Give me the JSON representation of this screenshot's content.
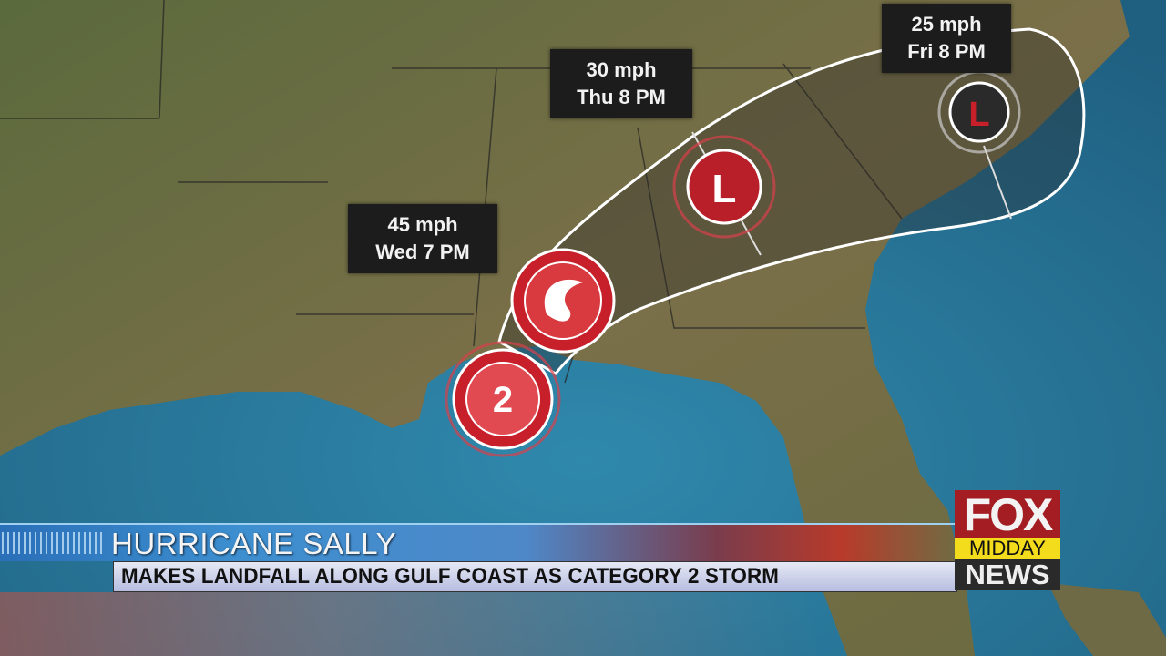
{
  "map": {
    "forecast_points": [
      {
        "wind": "45 mph",
        "time": "Wed 7 PM"
      },
      {
        "wind": "30 mph",
        "time": "Thu 8 PM"
      },
      {
        "wind": "25 mph",
        "time": "Fri 8 PM"
      }
    ],
    "storm_icons": [
      {
        "type": "hurricane",
        "label": "2"
      },
      {
        "type": "hurricane",
        "label": ""
      },
      {
        "type": "low",
        "label": "L"
      },
      {
        "type": "low",
        "label": "L"
      }
    ],
    "colors": {
      "land": "#6e6a45",
      "ocean": "#2a7d9e",
      "storm_red": "#c8202a",
      "cone": "#ffffff"
    }
  },
  "lower_third": {
    "headline": "HURRICANE SALLY",
    "subheadline": "MAKES LANDFALL ALONG GULF COAST AS CATEGORY 2 STORM"
  },
  "logo": {
    "line1": "FOX",
    "line2": "MIDDAY",
    "line3": "NEWS"
  }
}
